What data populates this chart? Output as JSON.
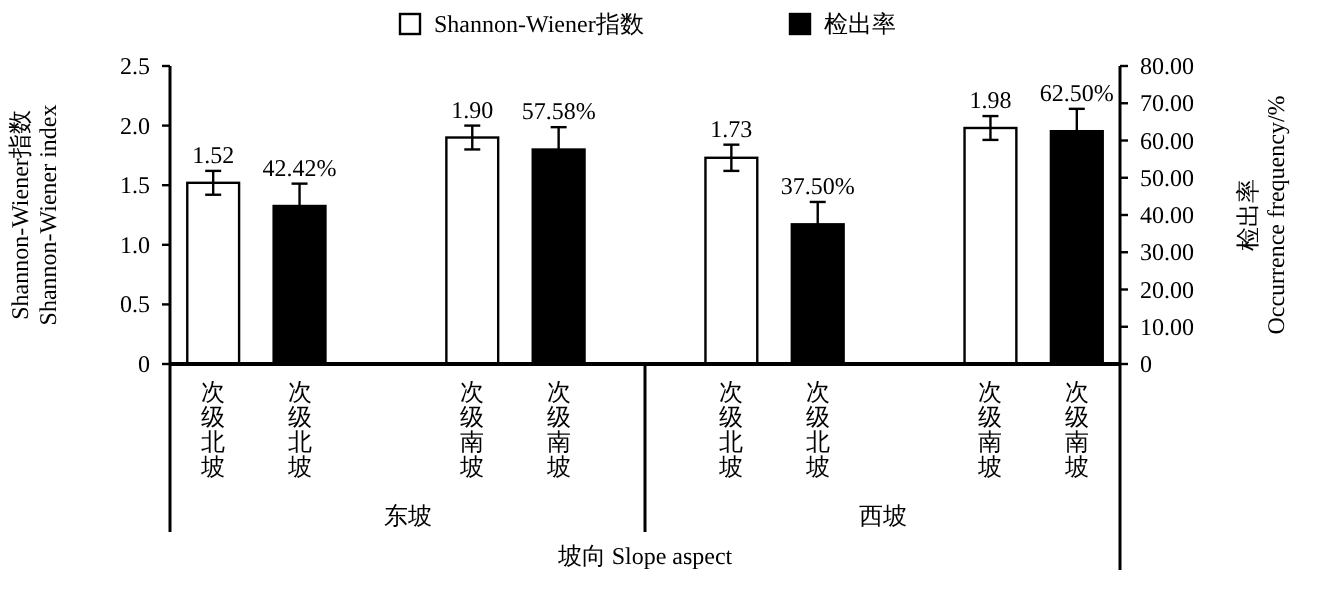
{
  "chart_data": {
    "type": "bar",
    "categories": [
      "次级北坡",
      "次级北坡",
      null,
      "次级南坡",
      "次级南坡",
      null,
      "次级北坡",
      "次级北坡",
      null,
      "次级南坡",
      "次级南坡"
    ],
    "series": [
      {
        "name": "Shannon-Wiener指数",
        "color": "#ffffff",
        "values": [
          1.52,
          null,
          null,
          1.9,
          null,
          null,
          1.73,
          null,
          null,
          1.98,
          null
        ],
        "errors": [
          0.1,
          null,
          null,
          0.1,
          null,
          null,
          0.11,
          null,
          null,
          0.1,
          null
        ],
        "value_labels": [
          "1.52",
          null,
          null,
          "1.90",
          null,
          null,
          "1.73",
          null,
          null,
          "1.98",
          null
        ]
      },
      {
        "name": "检出率",
        "axis": "y2",
        "color": "#000000",
        "values": [
          null,
          42.42,
          null,
          null,
          57.58,
          null,
          null,
          37.5,
          null,
          null,
          62.5
        ],
        "errors": [
          null,
          6,
          null,
          null,
          6,
          null,
          null,
          6,
          null,
          null,
          6
        ],
        "value_labels": [
          null,
          "42.42%",
          null,
          null,
          "57.58%",
          null,
          null,
          "37.50%",
          null,
          null,
          "62.50%"
        ]
      }
    ],
    "ylim": [
      0,
      2.5
    ],
    "yticks": [
      0,
      {
        "value": 0.5,
        "label": "0.5"
      },
      {
        "value": 1,
        "label": "1.0"
      },
      1.5,
      {
        "value": 2,
        "label": "2.0"
      },
      2.5
    ],
    "y2lim": [
      0,
      80
    ],
    "y2ticks": [
      0,
      {
        "value": 10,
        "label": "10.00"
      },
      {
        "value": 20,
        "label": "20.00"
      },
      {
        "value": 30,
        "label": "30.00"
      },
      {
        "value": 40,
        "label": "40.00"
      },
      {
        "value": 50,
        "label": "50.00"
      },
      {
        "value": 60,
        "label": "60.00"
      },
      {
        "value": 70,
        "label": "70.00"
      },
      {
        "value": 80,
        "label": "80.00"
      }
    ],
    "ylabel": "Shannon-Wiener指数\nShannon-Wiener index",
    "y2label": "检出率\nOccurrence frequency/%",
    "annotations": [
      "东坡",
      "西坡",
      "坡向 Slope aspect"
    ],
    "legend": "top"
  }
}
